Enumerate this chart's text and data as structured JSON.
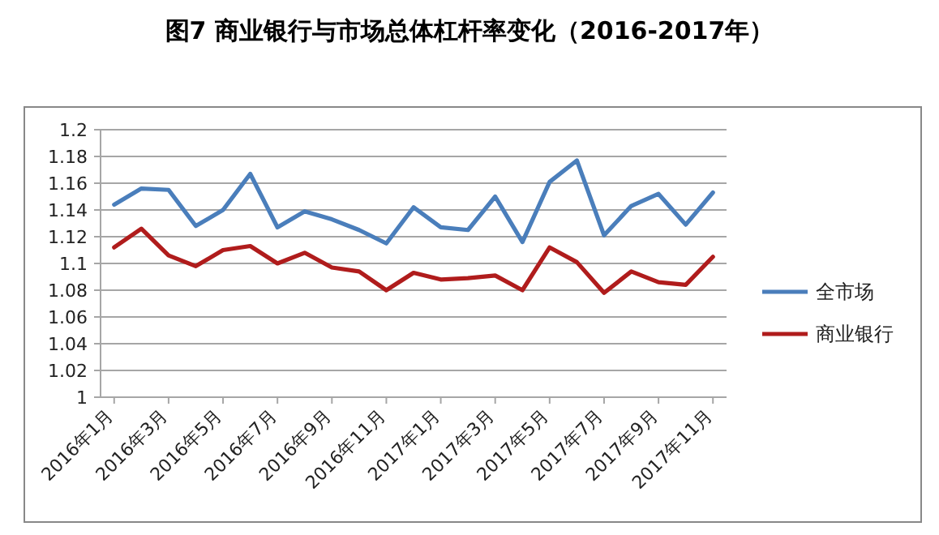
{
  "chart_data": {
    "type": "line",
    "title": "图7 商业银行与市场总体杠杆率变化（2016-2017年）",
    "categories": [
      "2016年1月",
      null,
      "2016年3月",
      null,
      "2016年5月",
      null,
      "2016年7月",
      null,
      "2016年9月",
      null,
      "2016年11月",
      null,
      "2017年1月",
      null,
      "2017年3月",
      null,
      "2017年5月",
      null,
      "2017年7月",
      null,
      "2017年9月",
      null,
      "2017年11月"
    ],
    "series": [
      {
        "name": "全市场",
        "color": "#4a7ebb",
        "values": [
          1.144,
          1.156,
          1.155,
          1.128,
          1.14,
          1.167,
          1.127,
          1.139,
          1.133,
          1.125,
          1.115,
          1.142,
          1.127,
          1.125,
          1.15,
          1.116,
          1.161,
          1.177,
          1.121,
          1.143,
          1.152,
          1.129,
          1.153
        ]
      },
      {
        "name": "商业银行",
        "color": "#b01c1c",
        "values": [
          1.112,
          1.126,
          1.106,
          1.098,
          1.11,
          1.113,
          1.1,
          1.108,
          1.097,
          1.094,
          1.08,
          1.093,
          1.088,
          1.089,
          1.091,
          1.08,
          1.112,
          1.101,
          1.078,
          1.094,
          1.086,
          1.084,
          1.105
        ]
      }
    ],
    "ylim": [
      1,
      1.2
    ],
    "yticks": [
      1,
      1.02,
      1.04,
      1.06,
      1.08,
      1.1,
      1.12,
      1.14,
      1.16,
      1.18,
      1.2
    ],
    "grid": "y",
    "legend": "right",
    "marker": "none",
    "line_style": "solid"
  }
}
